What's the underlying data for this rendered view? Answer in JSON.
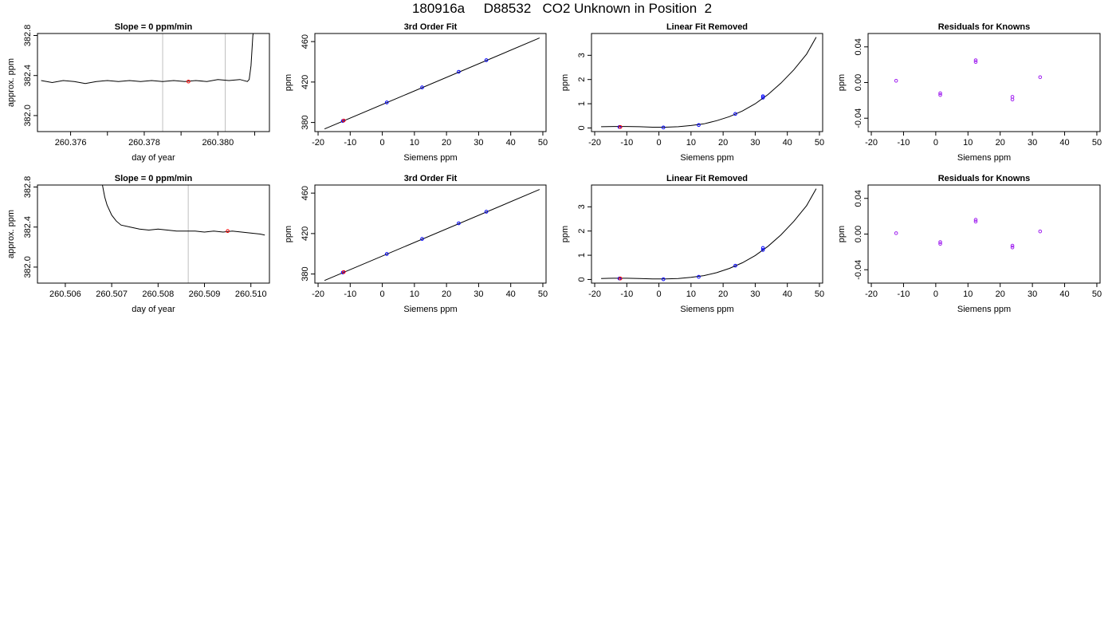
{
  "page": {
    "title": "180916a     D88532   CO2 Unknown in Position  2"
  },
  "colors": {
    "trace": "#000000",
    "marker_red": "#ff0000",
    "marker_blue": "#0000ff",
    "marker_purple": "#a020f0",
    "vline": "#bebebe"
  },
  "chart_data": [
    {
      "type": "line",
      "title": "Slope =  0  ppm/min",
      "xlabel": "day of year",
      "ylabel": "approx. ppm",
      "xlim": [
        260.3751,
        260.3814
      ],
      "ylim": [
        381.84,
        382.82
      ],
      "x_ticks": [
        260.376,
        260.378,
        260.38
      ],
      "x_minor_ticks": [
        260.377,
        260.379,
        260.381
      ],
      "y_ticks": [
        "382.0",
        "382.4",
        "382.8"
      ],
      "y_tick_values": [
        382.0,
        382.4,
        382.8
      ],
      "vlines": [
        260.3785,
        260.3802
      ],
      "series": [
        {
          "x": [
            260.3752,
            260.3755,
            260.3758,
            260.3761,
            260.3764,
            260.3767,
            260.377,
            260.3773,
            260.3776,
            260.3779,
            260.3782,
            260.3785,
            260.3788,
            260.3791,
            260.3794,
            260.3797,
            260.38,
            260.3803,
            260.3806,
            260.3808,
            260.38085,
            260.3809,
            260.38095,
            260.381
          ],
          "y": [
            382.35,
            382.33,
            382.35,
            382.34,
            382.32,
            382.34,
            382.35,
            382.34,
            382.35,
            382.34,
            382.35,
            382.34,
            382.35,
            382.34,
            382.35,
            382.34,
            382.36,
            382.35,
            382.36,
            382.34,
            382.36,
            382.5,
            382.8,
            382.9
          ]
        }
      ],
      "markers": [
        {
          "x": 260.3792,
          "y": 382.34,
          "color": "#ff0000"
        }
      ]
    },
    {
      "type": "scatter",
      "title": "3rd Order Fit",
      "xlabel": "Siemens ppm",
      "ylabel": "ppm",
      "xlim": [
        -21,
        51
      ],
      "ylim": [
        371,
        468
      ],
      "x_ticks": [
        -20,
        -10,
        0,
        10,
        20,
        30,
        40,
        50
      ],
      "y_ticks": [
        "380",
        "420",
        "460"
      ],
      "y_tick_values": [
        380,
        420,
        460
      ],
      "curve": {
        "x": [
          -18,
          49
        ],
        "y": [
          373.6,
          463.6
        ]
      },
      "points_blue": [
        {
          "x": -12.3,
          "y": 381.5
        },
        {
          "x": 1.4,
          "y": 399.8
        },
        {
          "x": 12.4,
          "y": 414.7
        },
        {
          "x": 23.8,
          "y": 430.1
        },
        {
          "x": 32.4,
          "y": 441.6
        }
      ],
      "points_red": [
        {
          "x": -12.0,
          "y": 381.9
        }
      ]
    },
    {
      "type": "scatter",
      "title": "Linear Fit Removed",
      "xlabel": "Siemens ppm",
      "ylabel": "ppm",
      "xlim": [
        -21,
        51
      ],
      "ylim": [
        -0.15,
        3.9
      ],
      "x_ticks": [
        -20,
        -10,
        0,
        10,
        20,
        30,
        40,
        50
      ],
      "y_ticks": [
        "0",
        "1",
        "2",
        "3"
      ],
      "y_tick_values": [
        0,
        1,
        2,
        3
      ],
      "curve": {
        "x": [
          -18,
          -14,
          -10,
          -6,
          -2,
          2,
          6,
          10,
          14,
          18,
          22,
          26,
          30,
          34,
          38,
          42,
          46,
          49
        ],
        "y": [
          0.05,
          0.06,
          0.06,
          0.05,
          0.03,
          0.03,
          0.05,
          0.1,
          0.17,
          0.3,
          0.47,
          0.7,
          1.0,
          1.38,
          1.85,
          2.4,
          3.05,
          3.75
        ]
      },
      "points_blue": [
        {
          "x": -12.3,
          "y": 0.04
        },
        {
          "x": 1.4,
          "y": 0.02
        },
        {
          "x": 12.4,
          "y": 0.12
        },
        {
          "x": 23.8,
          "y": 0.58
        },
        {
          "x": 32.4,
          "y": 1.25
        },
        {
          "x": 32.4,
          "y": 1.31
        }
      ],
      "points_red": [
        {
          "x": -12.0,
          "y": 0.04
        }
      ]
    },
    {
      "type": "scatter",
      "title": "Residuals for Knowns",
      "xlabel": "Siemens ppm",
      "ylabel": "ppm",
      "xlim": [
        -21,
        51
      ],
      "ylim": [
        -0.055,
        0.055
      ],
      "x_ticks": [
        -20,
        -10,
        0,
        10,
        20,
        30,
        40,
        50
      ],
      "y_ticks": [
        "-0.04",
        "0.00",
        "0.04"
      ],
      "y_tick_values": [
        -0.04,
        0.0,
        0.04
      ],
      "points": [
        {
          "x": -12.3,
          "y": 0.002
        },
        {
          "x": 1.4,
          "y": -0.012
        },
        {
          "x": 1.4,
          "y": -0.014
        },
        {
          "x": 12.4,
          "y": 0.023
        },
        {
          "x": 12.4,
          "y": 0.025
        },
        {
          "x": 23.8,
          "y": -0.016
        },
        {
          "x": 23.8,
          "y": -0.019
        },
        {
          "x": 32.4,
          "y": 0.006
        }
      ]
    },
    {
      "type": "line",
      "title": "Slope =  0  ppm/min",
      "xlabel": "day of year",
      "ylabel": "approx. ppm",
      "xlim": [
        260.5054,
        260.5104
      ],
      "ylim": [
        381.84,
        382.82
      ],
      "x_ticks": [
        260.506,
        260.507,
        260.508,
        260.509,
        260.51
      ],
      "x_minor_ticks": [],
      "y_ticks": [
        "382.0",
        "382.4",
        "382.8"
      ],
      "y_tick_values": [
        382.0,
        382.4,
        382.8
      ],
      "vlines": [
        260.50865,
        260.5104
      ],
      "series": [
        {
          "x": [
            260.5068,
            260.50685,
            260.5069,
            260.507,
            260.5071,
            260.5072,
            260.5074,
            260.5076,
            260.5078,
            260.508,
            260.5082,
            260.5084,
            260.5086,
            260.5088,
            260.509,
            260.5092,
            260.5094,
            260.5096,
            260.5098,
            260.51,
            260.5102,
            260.5103
          ],
          "y": [
            382.82,
            382.7,
            382.62,
            382.52,
            382.46,
            382.42,
            382.4,
            382.38,
            382.37,
            382.38,
            382.37,
            382.36,
            382.36,
            382.36,
            382.35,
            382.36,
            382.35,
            382.36,
            382.35,
            382.34,
            382.33,
            382.32
          ]
        }
      ],
      "markers": [
        {
          "x": 260.5095,
          "y": 382.36,
          "color": "#ff0000"
        }
      ]
    },
    {
      "type": "scatter",
      "title": "3rd Order Fit",
      "xlabel": "Siemens ppm",
      "ylabel": "ppm",
      "xlim": [
        -21,
        51
      ],
      "ylim": [
        371,
        468
      ],
      "x_ticks": [
        -20,
        -10,
        0,
        10,
        20,
        30,
        40,
        50
      ],
      "y_ticks": [
        "380",
        "420",
        "460"
      ],
      "y_tick_values": [
        380,
        420,
        460
      ],
      "curve": {
        "x": [
          -18,
          49
        ],
        "y": [
          373.6,
          463.6
        ]
      },
      "points_blue": [
        {
          "x": -12.3,
          "y": 381.5
        },
        {
          "x": 1.4,
          "y": 399.8
        },
        {
          "x": 12.4,
          "y": 414.7
        },
        {
          "x": 23.8,
          "y": 430.1
        },
        {
          "x": 32.4,
          "y": 441.6
        }
      ],
      "points_red": [
        {
          "x": -12.0,
          "y": 381.9
        }
      ]
    },
    {
      "type": "scatter",
      "title": "Linear Fit Removed",
      "xlabel": "Siemens ppm",
      "ylabel": "ppm",
      "xlim": [
        -21,
        51
      ],
      "ylim": [
        -0.15,
        3.9
      ],
      "x_ticks": [
        -20,
        -10,
        0,
        10,
        20,
        30,
        40,
        50
      ],
      "y_ticks": [
        "0",
        "1",
        "2",
        "3"
      ],
      "y_tick_values": [
        0,
        1,
        2,
        3
      ],
      "curve": {
        "x": [
          -18,
          -14,
          -10,
          -6,
          -2,
          2,
          6,
          10,
          14,
          18,
          22,
          26,
          30,
          34,
          38,
          42,
          46,
          49
        ],
        "y": [
          0.04,
          0.05,
          0.05,
          0.04,
          0.02,
          0.02,
          0.04,
          0.09,
          0.16,
          0.28,
          0.46,
          0.69,
          0.99,
          1.37,
          1.84,
          2.4,
          3.05,
          3.75
        ]
      },
      "points_blue": [
        {
          "x": -12.3,
          "y": 0.04
        },
        {
          "x": 1.4,
          "y": 0.01
        },
        {
          "x": 12.4,
          "y": 0.11
        },
        {
          "x": 23.8,
          "y": 0.57
        },
        {
          "x": 32.4,
          "y": 1.22
        },
        {
          "x": 32.4,
          "y": 1.3
        }
      ],
      "points_red": [
        {
          "x": -12.0,
          "y": 0.04
        }
      ]
    },
    {
      "type": "scatter",
      "title": "Residuals for Knowns",
      "xlabel": "Siemens ppm",
      "ylabel": "ppm",
      "xlim": [
        -21,
        51
      ],
      "ylim": [
        -0.055,
        0.055
      ],
      "x_ticks": [
        -20,
        -10,
        0,
        10,
        20,
        30,
        40,
        50
      ],
      "y_ticks": [
        "-0.04",
        "0.00",
        "0.04"
      ],
      "y_tick_values": [
        -0.04,
        0.0,
        0.04
      ],
      "points": [
        {
          "x": -12.3,
          "y": 0.001
        },
        {
          "x": 1.4,
          "y": -0.009
        },
        {
          "x": 1.4,
          "y": -0.011
        },
        {
          "x": 12.4,
          "y": 0.014
        },
        {
          "x": 12.4,
          "y": 0.016
        },
        {
          "x": 23.8,
          "y": -0.013
        },
        {
          "x": 23.8,
          "y": -0.015
        },
        {
          "x": 32.4,
          "y": 0.003
        }
      ]
    }
  ]
}
